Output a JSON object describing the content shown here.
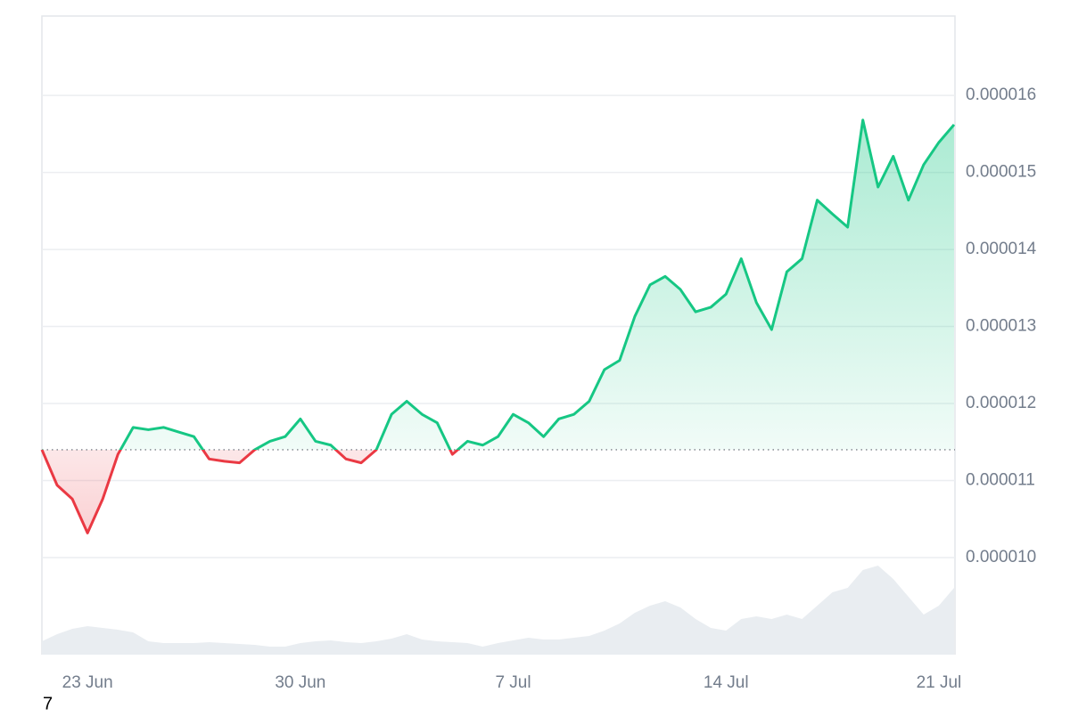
{
  "chart_data": {
    "type": "line",
    "x": [
      21.5,
      22,
      22.5,
      23,
      23.5,
      24,
      24.5,
      25,
      25.5,
      26,
      26.5,
      27,
      27.5,
      28,
      28.5,
      29,
      29.5,
      30,
      30.5,
      31,
      31.5,
      32,
      32.5,
      33,
      33.5,
      34,
      34.5,
      35,
      35.5,
      36,
      36.5,
      37,
      37.5,
      38,
      38.5,
      39,
      39.5,
      40,
      40.5,
      41,
      41.5,
      42,
      42.5,
      43,
      43.5,
      44,
      44.5,
      45,
      45.5,
      46,
      46.5,
      47,
      47.5,
      48,
      48.5,
      49,
      49.5,
      50,
      50.5,
      51,
      51.5
    ],
    "series": [
      {
        "color_up": "#16c784",
        "color_down": "#ea3943",
        "values": [
          1.14e-05,
          1.094e-05,
          1.076e-05,
          1.032e-05,
          1.076e-05,
          1.134e-05,
          1.169e-05,
          1.166e-05,
          1.169e-05,
          1.163e-05,
          1.157e-05,
          1.128e-05,
          1.125e-05,
          1.123e-05,
          1.14e-05,
          1.151e-05,
          1.157e-05,
          1.18e-05,
          1.151e-05,
          1.146e-05,
          1.128e-05,
          1.123e-05,
          1.14e-05,
          1.186e-05,
          1.203e-05,
          1.186e-05,
          1.175e-05,
          1.134e-05,
          1.151e-05,
          1.146e-05,
          1.157e-05,
          1.186e-05,
          1.175e-05,
          1.157e-05,
          1.18e-05,
          1.186e-05,
          1.203e-05,
          1.244e-05,
          1.256e-05,
          1.313e-05,
          1.354e-05,
          1.365e-05,
          1.348e-05,
          1.319e-05,
          1.325e-05,
          1.342e-05,
          1.388e-05,
          1.331e-05,
          1.296e-05,
          1.371e-05,
          1.388e-05,
          1.464e-05,
          1.446e-05,
          1.429e-05,
          1.568e-05,
          1.481e-05,
          1.521e-05,
          1.464e-05,
          1.51e-05,
          1.539e-05,
          1.562e-05
        ]
      }
    ],
    "baseline": 1.14e-05,
    "volume": {
      "color": "#e9edf1",
      "ylim": [
        0,
        110
      ],
      "values": [
        15,
        23,
        29,
        32,
        30,
        28,
        25,
        15,
        13,
        13,
        13,
        14,
        13,
        12,
        11,
        9,
        9,
        13,
        15,
        16,
        14,
        13,
        15,
        18,
        23,
        17,
        15,
        14,
        13,
        9,
        13,
        16,
        19,
        17,
        17,
        19,
        21,
        27,
        35,
        47,
        55,
        60,
        53,
        40,
        30,
        27,
        40,
        43,
        40,
        45,
        40,
        55,
        70,
        75,
        95,
        100,
        85,
        65,
        45,
        55,
        75
      ]
    },
    "xlim": [
      21.5,
      51.53
    ],
    "xticks": [
      {
        "value": 23,
        "label": "23 Jun"
      },
      {
        "value": 30,
        "label": "30 Jun"
      },
      {
        "value": 37,
        "label": "7 Jul"
      },
      {
        "value": 44,
        "label": "14 Jul"
      },
      {
        "value": 51,
        "label": "21 Jul"
      }
    ],
    "ylim": [
      8.74e-06,
      1.703e-05
    ],
    "yticks": [
      {
        "value": 1e-05,
        "label": "0.000010"
      },
      1.1e-05,
      1.2e-05,
      1.3e-05,
      1.4e-05,
      1.5e-05,
      1.6e-05
    ],
    "grid": true,
    "footer_text": "7"
  }
}
